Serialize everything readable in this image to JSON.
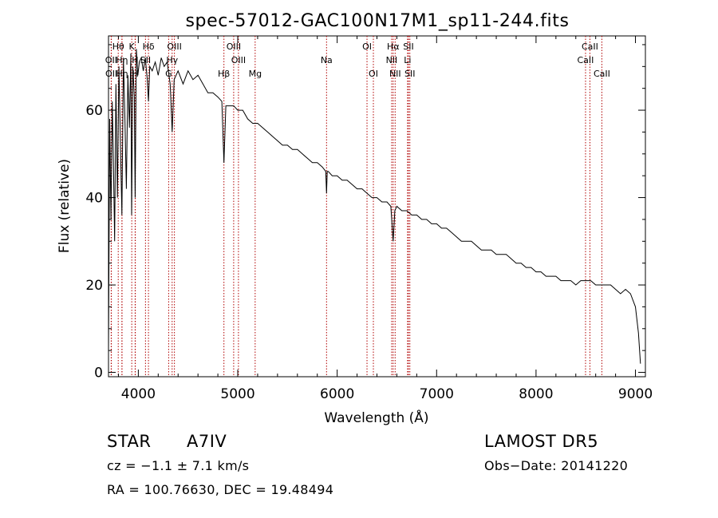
{
  "chart_data": {
    "type": "line",
    "title": "spec-57012-GAC100N17M1_sp11-244.fits",
    "xlabel": "Wavelength (Å)",
    "ylabel": "Flux (relative)",
    "xlim": [
      3700,
      9100
    ],
    "ylim": [
      -1,
      77
    ],
    "xticks": [
      4000,
      5000,
      6000,
      7000,
      8000,
      9000
    ],
    "yticks": [
      0,
      20,
      40,
      60
    ],
    "grid": false,
    "line_color": "#000000",
    "marker_color": "#b00000",
    "series": [
      {
        "x": [
          3700,
          3712,
          3725,
          3738,
          3750,
          3762,
          3775,
          3790,
          3805,
          3820,
          3835,
          3850,
          3865,
          3880,
          3895,
          3910,
          3925,
          3933,
          3945,
          3960,
          3968,
          3980,
          3995,
          4010,
          4030,
          4050,
          4070,
          4090,
          4102,
          4115,
          4140,
          4170,
          4200,
          4230,
          4260,
          4290,
          4320,
          4340,
          4360,
          4400,
          4450,
          4500,
          4550,
          4600,
          4650,
          4700,
          4750,
          4800,
          4840,
          4861,
          4880,
          4920,
          4960,
          5000,
          5050,
          5100,
          5150,
          5200,
          5250,
          5300,
          5350,
          5400,
          5450,
          5500,
          5550,
          5600,
          5650,
          5700,
          5750,
          5800,
          5850,
          5885,
          5893,
          5900,
          5910,
          5950,
          6000,
          6050,
          6100,
          6150,
          6200,
          6250,
          6300,
          6350,
          6400,
          6450,
          6500,
          6540,
          6563,
          6580,
          6600,
          6650,
          6700,
          6750,
          6800,
          6850,
          6900,
          6950,
          7000,
          7050,
          7100,
          7150,
          7200,
          7250,
          7300,
          7350,
          7400,
          7450,
          7500,
          7550,
          7600,
          7650,
          7700,
          7750,
          7800,
          7850,
          7900,
          7950,
          8000,
          8050,
          8100,
          8150,
          8200,
          8250,
          8300,
          8350,
          8400,
          8450,
          8500,
          8550,
          8600,
          8650,
          8700,
          8750,
          8800,
          8850,
          8900,
          8950,
          9000,
          9030,
          9050
        ],
        "y": [
          5,
          58,
          35,
          62,
          48,
          30,
          66,
          40,
          70,
          52,
          36,
          72,
          58,
          42,
          68,
          56,
          73,
          36,
          70,
          63,
          40,
          74,
          68,
          71,
          72,
          69,
          72,
          67,
          62,
          70,
          69,
          71,
          68,
          72,
          70,
          71,
          66,
          55,
          67,
          69,
          66,
          69,
          67,
          68,
          66,
          64,
          64,
          63,
          62,
          48,
          61,
          61,
          61,
          60,
          60,
          58,
          57,
          57,
          56,
          55,
          54,
          53,
          52,
          52,
          51,
          51,
          50,
          49,
          48,
          48,
          47,
          46,
          41,
          46,
          46,
          45,
          45,
          44,
          44,
          43,
          42,
          42,
          41,
          40,
          40,
          39,
          39,
          38,
          30,
          37,
          38,
          37,
          37,
          36,
          36,
          35,
          35,
          34,
          34,
          33,
          33,
          32,
          31,
          30,
          30,
          30,
          29,
          28,
          28,
          28,
          27,
          27,
          27,
          26,
          25,
          25,
          24,
          24,
          23,
          23,
          22,
          22,
          22,
          21,
          21,
          21,
          20,
          21,
          21,
          21,
          20,
          20,
          20,
          20,
          19,
          18,
          19,
          18,
          15,
          9,
          2
        ]
      }
    ],
    "lines": [
      {
        "label": "Hθ",
        "x": 3798,
        "row": 1
      },
      {
        "label": "OII",
        "x": 3727,
        "row": 2
      },
      {
        "label": "OII",
        "x": 3729,
        "row": 3
      },
      {
        "label": "Hη",
        "x": 3835,
        "row": 2
      },
      {
        "label": "Hη",
        "x": 3836,
        "row": 3
      },
      {
        "label": "K",
        "x": 3934,
        "row": 1
      },
      {
        "label": "H",
        "x": 3968,
        "row": 2
      },
      {
        "label": "H",
        "x": 3970,
        "row": 3
      },
      {
        "label": "Hδ",
        "x": 4102,
        "row": 1
      },
      {
        "label": "SII",
        "x": 4072,
        "row": 2
      },
      {
        "label": "OIII",
        "x": 4363,
        "row": 1
      },
      {
        "label": "Hγ",
        "x": 4340,
        "row": 2
      },
      {
        "label": "G",
        "x": 4305,
        "row": 3
      },
      {
        "label": "OIII",
        "x": 4959,
        "row": 1
      },
      {
        "label": "OIII",
        "x": 5007,
        "row": 2
      },
      {
        "label": "Hβ",
        "x": 4861,
        "row": 3
      },
      {
        "label": "Mg",
        "x": 5175,
        "row": 3
      },
      {
        "label": "Na",
        "x": 5893,
        "row": 2
      },
      {
        "label": "OI",
        "x": 6300,
        "row": 1
      },
      {
        "label": "OI",
        "x": 6364,
        "row": 3
      },
      {
        "label": "Hα",
        "x": 6563,
        "row": 1
      },
      {
        "label": "NII",
        "x": 6548,
        "row": 2
      },
      {
        "label": "NII",
        "x": 6583,
        "row": 3
      },
      {
        "label": "SII",
        "x": 6717,
        "row": 1
      },
      {
        "label": "Li",
        "x": 6708,
        "row": 2
      },
      {
        "label": "SII",
        "x": 6731,
        "row": 3
      },
      {
        "label": "CaII",
        "x": 8542,
        "row": 1
      },
      {
        "label": "CaII",
        "x": 8498,
        "row": 2
      },
      {
        "label": "CaII",
        "x": 8662,
        "row": 3
      }
    ]
  },
  "footer": {
    "class_label": "STAR",
    "subclass": "A7IV",
    "survey": "LAMOST  DR5",
    "cz": "cz = −1.1 ± 7.1 km/s",
    "obs_date": "Obs−Date: 20141220",
    "coords": "RA = 100.76630, DEC =  19.48494"
  }
}
